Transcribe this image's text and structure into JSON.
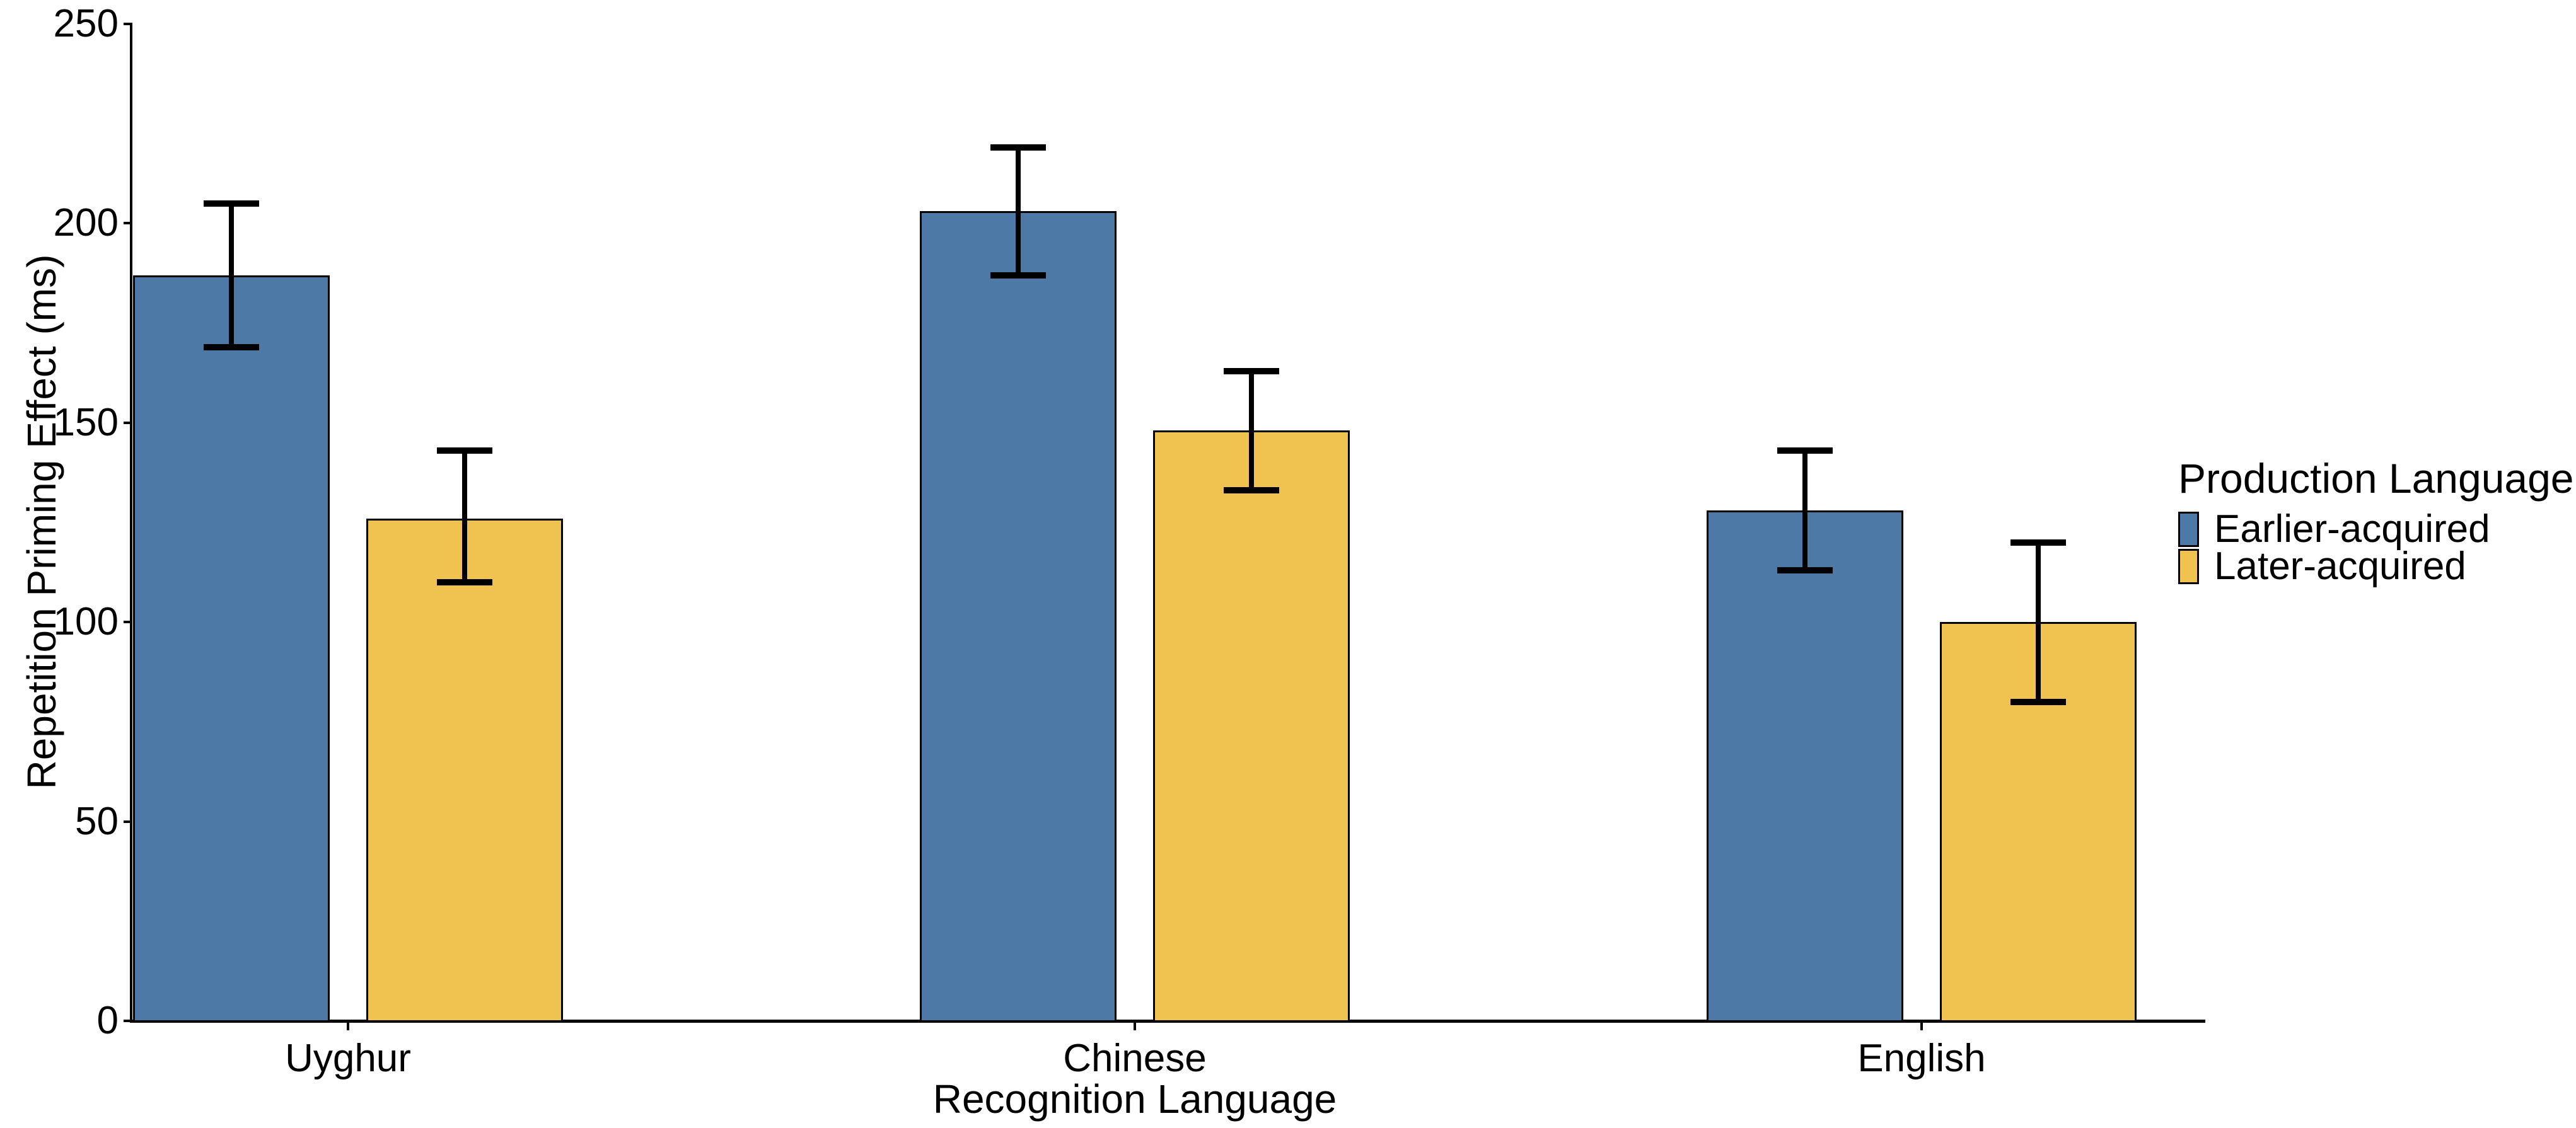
{
  "figure": {
    "background": "#FFFFFF",
    "axis_color": "#000000",
    "text_color": "#000000"
  },
  "chart_data": {
    "type": "bar",
    "title": "",
    "xlabel": "Recognition Language",
    "ylabel": "Repetition Priming Effect (ms)",
    "categories": [
      "Uyghur",
      "Chinese",
      "English"
    ],
    "series": [
      {
        "name": "Earlier-acquired",
        "color": "#4D79A7",
        "values": [
          187,
          203,
          128
        ],
        "ci_lower": [
          169,
          187,
          113
        ],
        "ci_upper": [
          205,
          219,
          143
        ]
      },
      {
        "name": "Later-acquired",
        "color": "#F0C350",
        "values": [
          126,
          148,
          100
        ],
        "ci_lower": [
          110,
          133,
          80
        ],
        "ci_upper": [
          143,
          163,
          120
        ]
      }
    ],
    "ylim": [
      0,
      250
    ],
    "yticks": [
      0,
      50,
      100,
      150,
      200,
      250
    ],
    "grid": "off",
    "error_bars": true,
    "bar_edge_color": "#000000",
    "legend_title": "Production Language",
    "legend_position": "right"
  }
}
